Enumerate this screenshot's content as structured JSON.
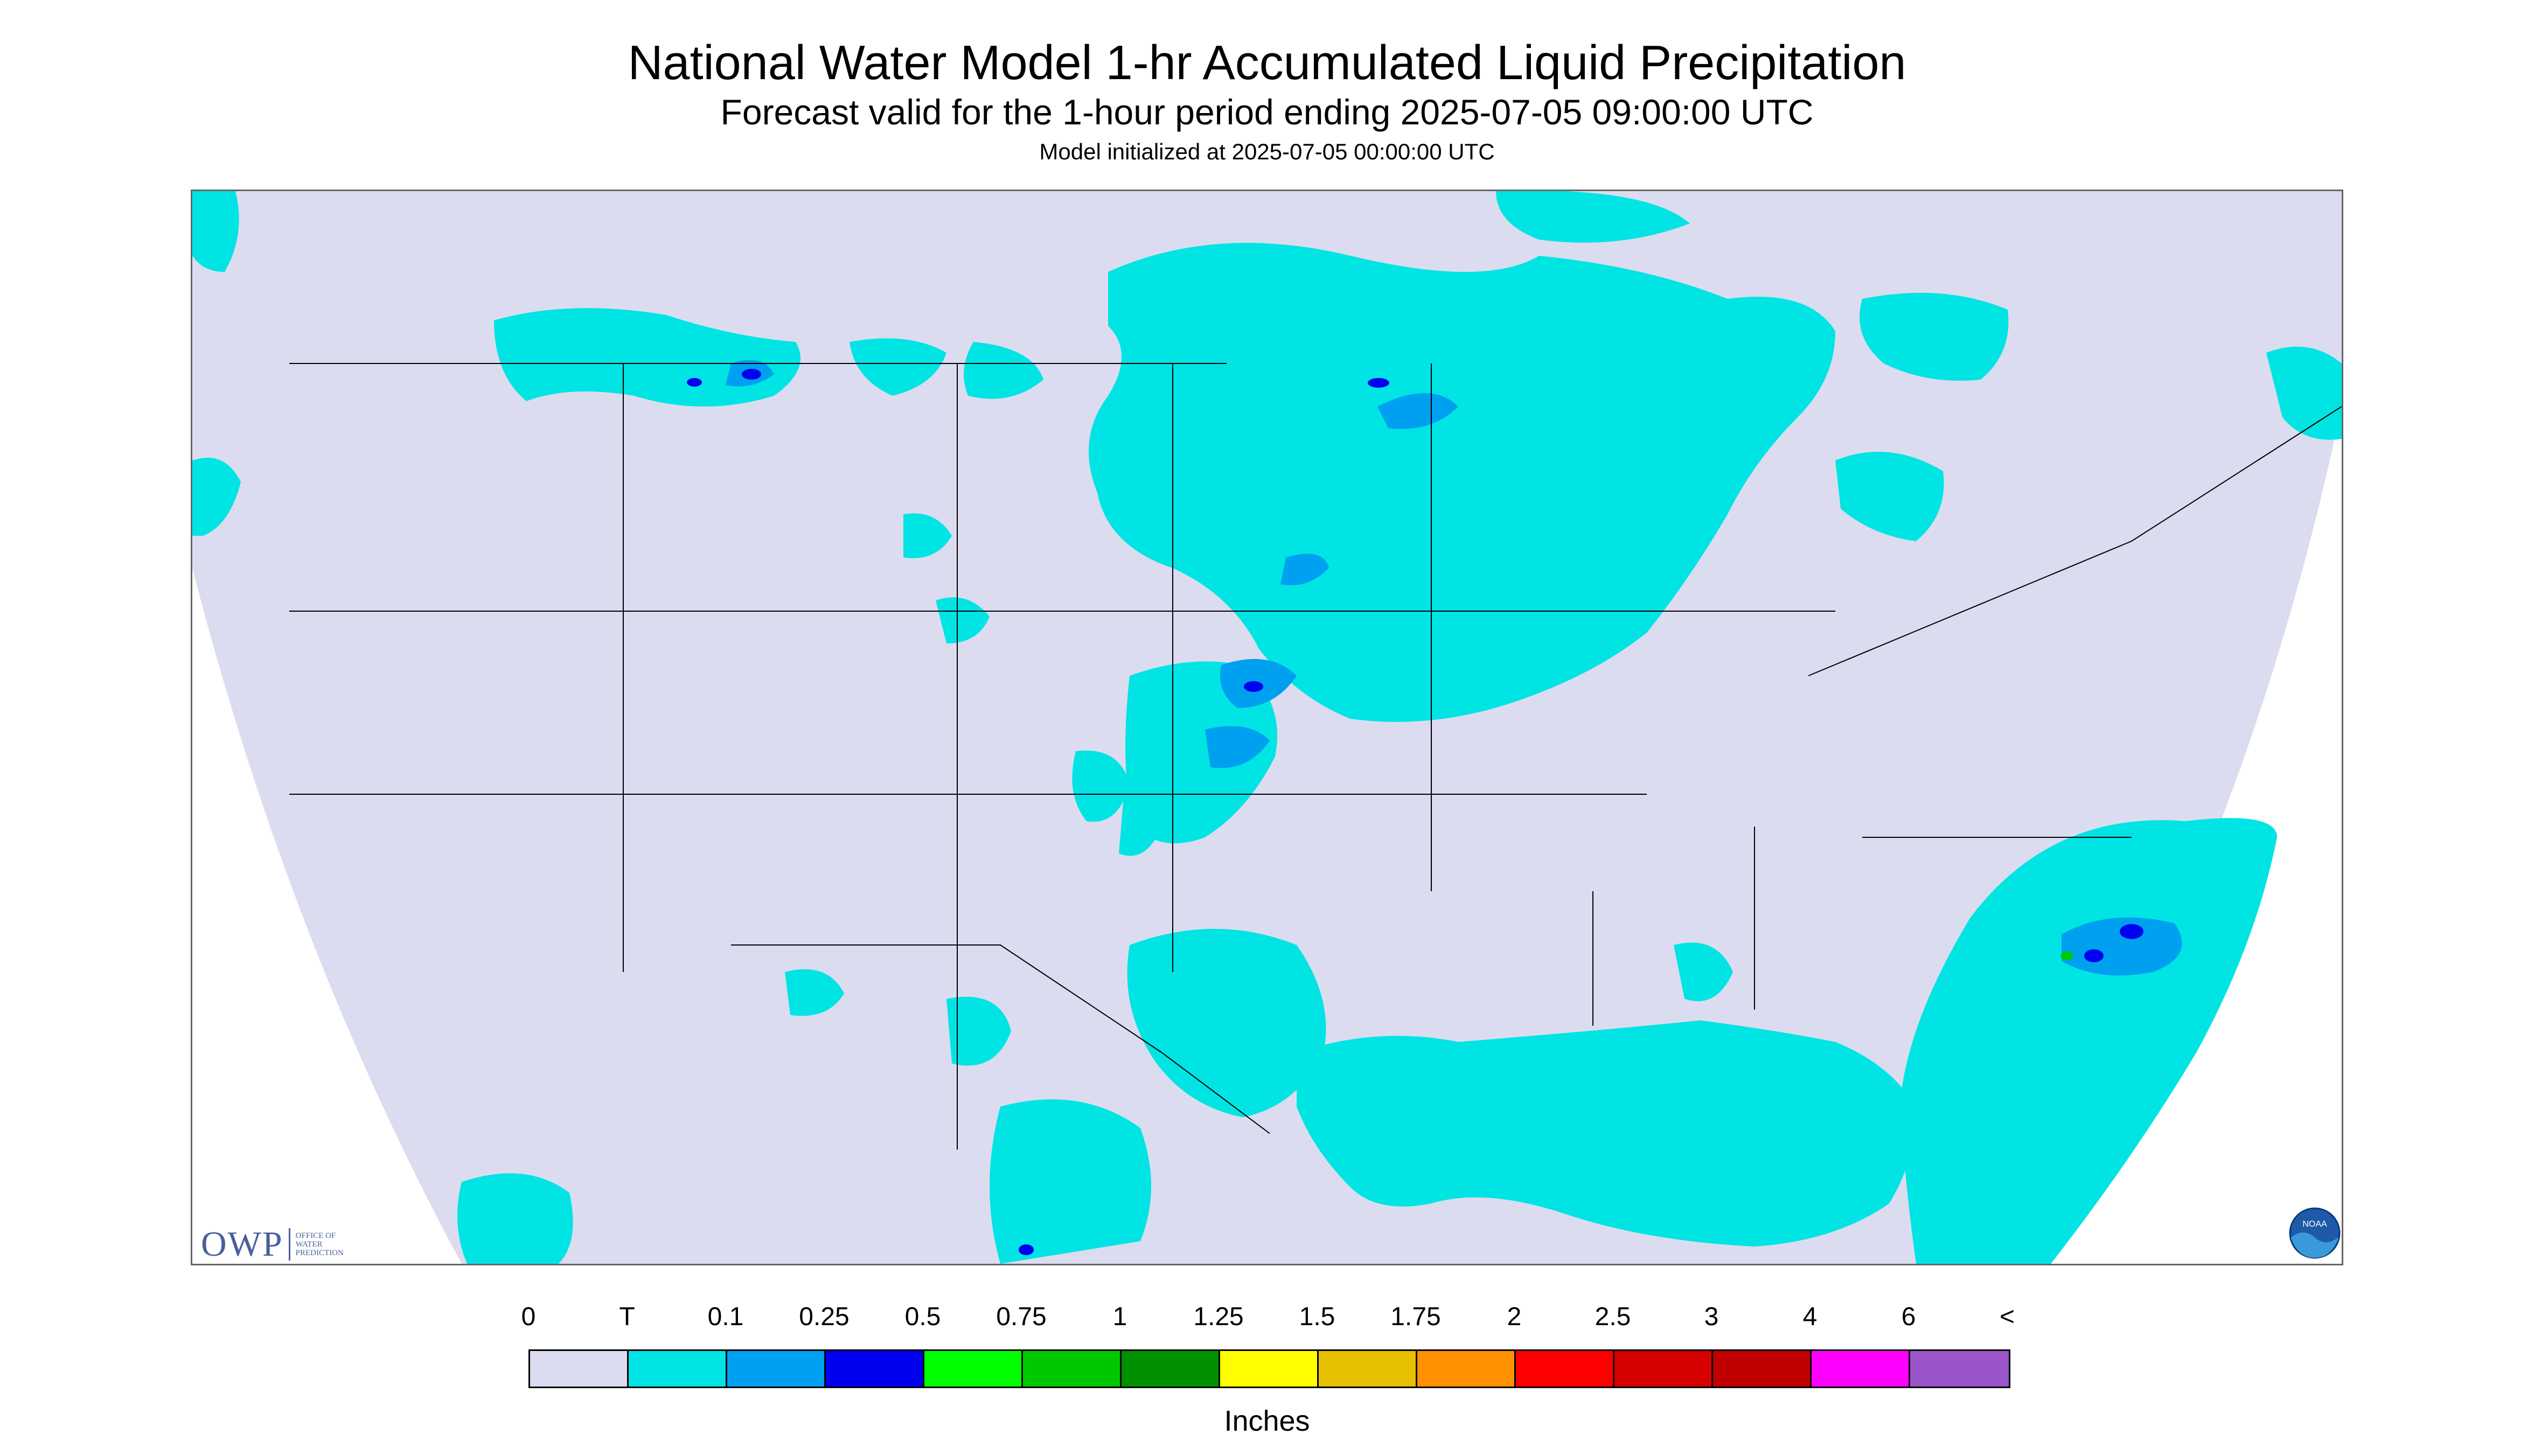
{
  "header": {
    "title": "National Water Model 1-hr Accumulated Liquid Precipitation",
    "subtitle": "Forecast valid for the 1-hour period ending 2025-07-05 09:00:00 UTC",
    "initialized": "Model initialized at 2025-07-05 00:00:00 UTC"
  },
  "logos": {
    "owp_text": "OWP",
    "owp_subtext_1": "OFFICE OF",
    "owp_subtext_2": "WATER",
    "owp_subtext_3": "PREDICTION",
    "noaa_text": "NOAA"
  },
  "legend": {
    "labels": [
      "0",
      "T",
      "0.1",
      "0.25",
      "0.5",
      "0.75",
      "1",
      "1.25",
      "1.5",
      "1.75",
      "2",
      "2.5",
      "3",
      "4",
      "6",
      "<"
    ],
    "colors": [
      "#dcdcf0",
      "#00e4e4",
      "#00a0f0",
      "#0000f0",
      "#00ff00",
      "#00c800",
      "#009000",
      "#ffff00",
      "#e7c000",
      "#ff9000",
      "#ff0000",
      "#d60000",
      "#c00000",
      "#ff00ff",
      "#9955c9"
    ],
    "units": "Inches"
  },
  "map_colors": {
    "background": "#dcdcf0",
    "trace": "#00e4e4",
    "light": "#00a0f0",
    "medium": "#0000f0",
    "heavy": "#00c800",
    "outline": "#000000"
  }
}
